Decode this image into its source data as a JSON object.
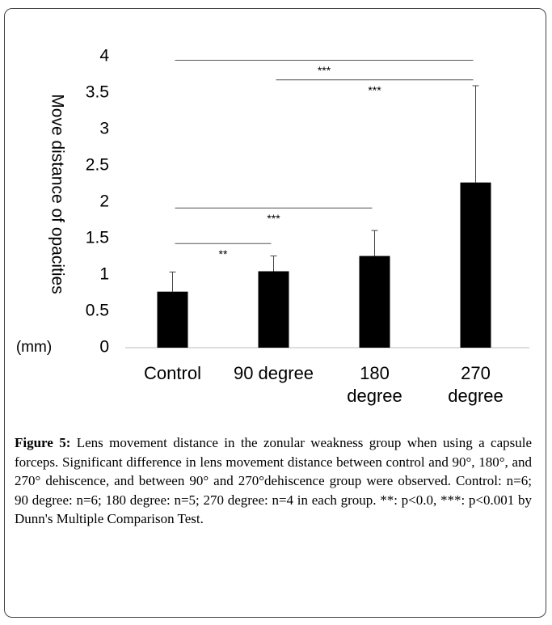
{
  "chart_data": {
    "type": "bar",
    "ylabel": "Move distance of opacities",
    "unit_label": "(mm)",
    "categories": [
      "Control",
      "90 degree",
      "180\ndegree",
      "270\ndegree"
    ],
    "values": [
      0.77,
      1.05,
      1.26,
      2.27
    ],
    "errors": [
      0.27,
      0.21,
      0.35,
      1.33
    ],
    "color": "#000000",
    "ylim": [
      0,
      4
    ],
    "yticks": [
      0,
      0.5,
      1,
      1.5,
      2,
      2.5,
      3,
      3.5,
      4
    ],
    "grid": false,
    "annotations": [
      {
        "label": "***",
        "y": 3.95,
        "from": 0,
        "to": 3
      },
      {
        "label": "***",
        "y": 3.68,
        "from": 1,
        "to": 3
      },
      {
        "label": "***",
        "y": 1.92,
        "from": 0,
        "to": 2
      },
      {
        "label": "**",
        "y": 1.43,
        "from": 0,
        "to": 1
      }
    ]
  },
  "caption": {
    "label": "Figure 5:",
    "text": "Lens movement distance in the zonular weakness group when using a capsule forceps. Significant difference in lens movement distance between control and 90°, 180°, and 270° dehiscence, and between 90° and 270°dehiscence group were observed. Control: n=6; 90 degree: n=6; 180 degree: n=5; 270 degree: n=4 in each group. **: p<0.0, ***: p<0.001 by Dunn's Multiple Comparison Test."
  }
}
